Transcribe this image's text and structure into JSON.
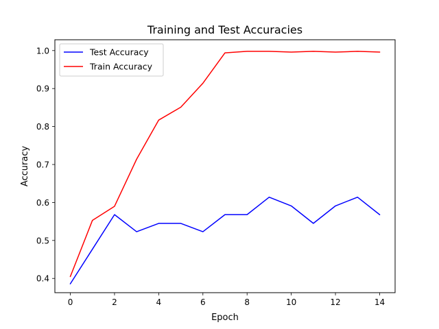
{
  "chart_data": {
    "type": "line",
    "title": "Training and Test Accuracies",
    "xlabel": "Epoch",
    "ylabel": "Accuracy",
    "x": [
      0,
      1,
      2,
      3,
      4,
      5,
      6,
      7,
      8,
      9,
      10,
      11,
      12,
      13,
      14
    ],
    "xlim": [
      -0.7,
      14.7
    ],
    "ylim": [
      0.3625,
      1.0285
    ],
    "xticks": [
      0,
      2,
      4,
      6,
      8,
      10,
      12,
      14
    ],
    "yticks": [
      0.4,
      0.5,
      0.6,
      0.7,
      0.8,
      0.9,
      1.0
    ],
    "xtick_labels": [
      "0",
      "2",
      "4",
      "6",
      "8",
      "10",
      "12",
      "14"
    ],
    "ytick_labels": [
      "0.4",
      "0.5",
      "0.6",
      "0.7",
      "0.8",
      "0.9",
      "1.0"
    ],
    "grid": false,
    "legend_position": "upper-left",
    "series": [
      {
        "name": "Test Accuracy",
        "color": "#0000ff",
        "values": [
          0.386,
          0.477,
          0.568,
          0.523,
          0.545,
          0.545,
          0.523,
          0.568,
          0.568,
          0.614,
          0.591,
          0.545,
          0.591,
          0.614,
          0.568
        ]
      },
      {
        "name": "Train Accuracy",
        "color": "#ff0000",
        "values": [
          0.405,
          0.553,
          0.59,
          0.714,
          0.817,
          0.851,
          0.914,
          0.994,
          0.998,
          0.998,
          0.996,
          0.998,
          0.996,
          0.998,
          0.996
        ]
      }
    ]
  }
}
